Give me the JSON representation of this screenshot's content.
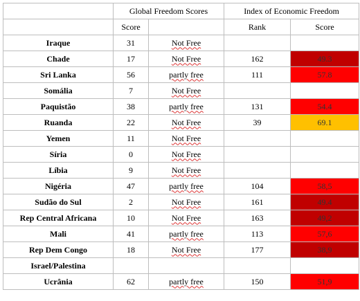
{
  "header": {
    "global_freedom": "Global Freedom Scores",
    "economic_freedom": "Index of Economic Freedom",
    "score": "Score",
    "rank": "Rank",
    "econ_score": "Score"
  },
  "colors": {
    "dark_red": "#c00000",
    "red": "#ff0000",
    "orange": "#ffc000"
  },
  "rows": [
    {
      "country": "Iraque",
      "gf_score": "31",
      "status": "Not Free",
      "rank": "",
      "econ_score": "",
      "color": ""
    },
    {
      "country": "Chade",
      "gf_score": "17",
      "status": "Not Free",
      "rank": "162",
      "econ_score": "49.3",
      "color": "#c00000"
    },
    {
      "country": "Sri Lanka",
      "gf_score": "56",
      "status": "partly free",
      "rank": "111",
      "econ_score": "57.8",
      "color": "#ff0000"
    },
    {
      "country": "Somália",
      "gf_score": "7",
      "status": "Not Free",
      "rank": "",
      "econ_score": "",
      "color": ""
    },
    {
      "country": "Paquistão",
      "gf_score": "38",
      "status": "partly free",
      "rank": "131",
      "econ_score": "54.4",
      "color": "#ff0000"
    },
    {
      "country": "Ruanda",
      "gf_score": "22",
      "status": "Not Free",
      "rank": "39",
      "econ_score": "69.1",
      "color": "#ffc000"
    },
    {
      "country": "Yemen",
      "gf_score": "11",
      "status": "Not Free",
      "rank": "",
      "econ_score": "",
      "color": ""
    },
    {
      "country": "Síria",
      "gf_score": "0",
      "status": "Not Free",
      "rank": "",
      "econ_score": "",
      "color": ""
    },
    {
      "country": "Líbia",
      "gf_score": "9",
      "status": "Not Free",
      "rank": "",
      "econ_score": "",
      "color": ""
    },
    {
      "country": "Nigéria",
      "gf_score": "47",
      "status": "partly free",
      "rank": "104",
      "econ_score": "58,5",
      "color": "#ff0000"
    },
    {
      "country": "Sudão do Sul",
      "gf_score": "2",
      "status": "Not Free",
      "rank": "161",
      "econ_score": "49.4",
      "color": "#c00000"
    },
    {
      "country": "Rep Central Africana",
      "gf_score": "10",
      "status": "Not Free",
      "rank": "163",
      "econ_score": "49,2",
      "color": "#c00000"
    },
    {
      "country": "Mali",
      "gf_score": "41",
      "status": "partly free",
      "rank": "113",
      "econ_score": "57,6",
      "color": "#ff0000"
    },
    {
      "country": "Rep Dem Congo",
      "gf_score": "18",
      "status": "Not Free",
      "rank": "177",
      "econ_score": "38,9",
      "color": "#c00000"
    },
    {
      "country": "Israel/Palestina",
      "gf_score": "",
      "status": "",
      "rank": "",
      "econ_score": "",
      "color": ""
    },
    {
      "country": "Ucrânia",
      "gf_score": "62",
      "status": "partly free",
      "rank": "150",
      "econ_score": "51,9",
      "color": "#ff0000"
    }
  ]
}
